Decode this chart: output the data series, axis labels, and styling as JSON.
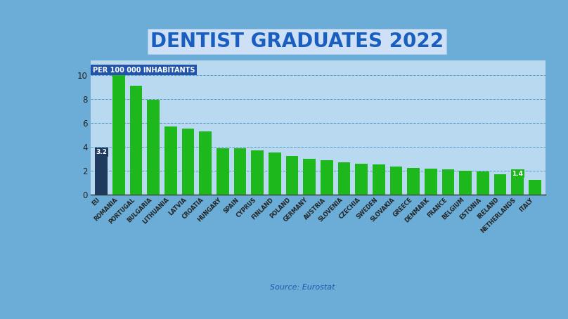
{
  "title": "DENTIST GRADUATES 2022",
  "subtitle": "PER 100 000 INHABITANTS",
  "source": "Source: Eurostat",
  "categories": [
    "EU",
    "ROMANIA",
    "PORTUGAL",
    "BULGARIA",
    "LITHUANIA",
    "LATVIA",
    "CROATIA",
    "HUNGARY",
    "SPAIN",
    "CYPRUS",
    "FINLAND",
    "POLAND",
    "GERMANY",
    "AUSTRIA",
    "SLOVENIA",
    "CZECHIA",
    "SWEDEN",
    "SLOVAKIA",
    "GREECE",
    "DENMARK",
    "FRANCE",
    "BELGIUM",
    "ESTONIA",
    "IRELAND",
    "NETHERLANDS",
    "ITALY"
  ],
  "values": [
    3.2,
    9.9,
    9.1,
    7.9,
    5.7,
    5.5,
    5.3,
    3.9,
    3.85,
    3.7,
    3.5,
    3.25,
    3.0,
    2.85,
    2.7,
    2.6,
    2.5,
    2.35,
    2.25,
    2.15,
    2.1,
    2.0,
    1.95,
    1.7,
    1.4,
    1.25
  ],
  "bar_color_green": "#1cb81c",
  "bar_color_eu": "#1e3a5f",
  "background_outer": "#6badd6",
  "background_inner": "#9fcae8",
  "panel_bg": "#b8d9f0",
  "grid_color": "#5a9ec4",
  "yticks": [
    0,
    2,
    4,
    6,
    8,
    10
  ],
  "ylim": [
    0,
    11.2
  ],
  "title_color": "#1a5fbf",
  "title_bg": "#dceaf8",
  "subtitle_color": "#ffffff",
  "subtitle_bg": "#2255aa",
  "axis_tick_color": "#222222",
  "source_color": "#2255aa",
  "source_fontsize": 8,
  "title_fontsize": 20,
  "subtitle_fontsize": 7
}
